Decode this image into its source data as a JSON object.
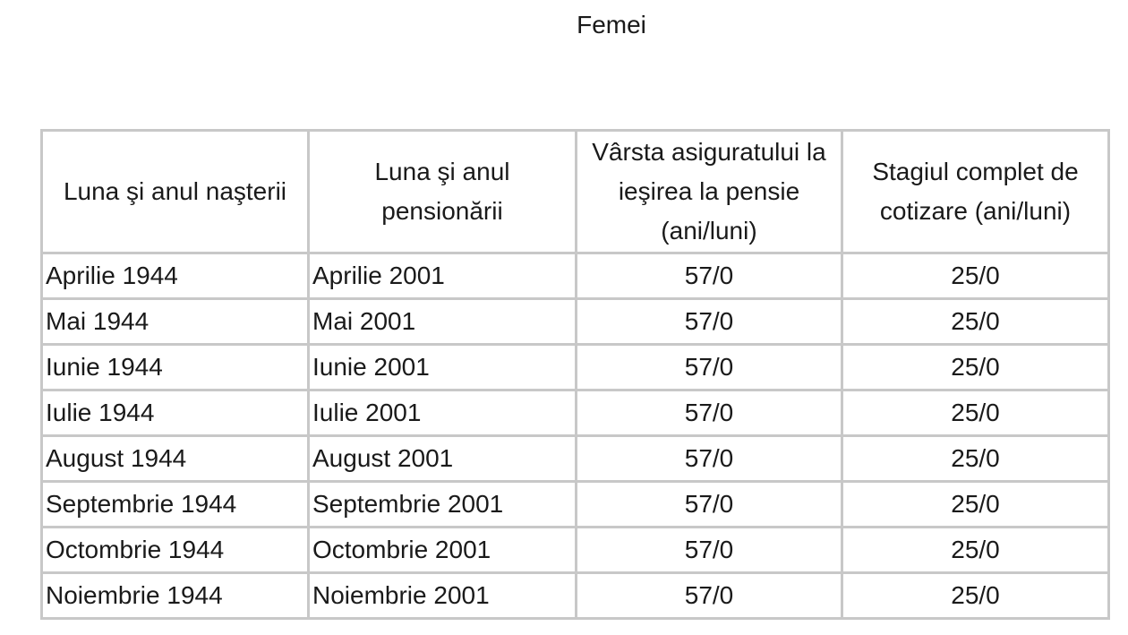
{
  "title": "Femei",
  "table": {
    "headers": [
      "Luna şi anul naşterii",
      "Luna şi anul pensionării",
      "Vârsta asiguratului la ieşirea la pensie (ani/luni)",
      "Stagiul complet de cotizare (ani/luni)"
    ],
    "rows": [
      [
        "Aprilie 1944",
        "Aprilie 2001",
        "57/0",
        "25/0"
      ],
      [
        "Mai 1944",
        "Mai 2001",
        "57/0",
        "25/0"
      ],
      [
        "Iunie 1944",
        "Iunie 2001",
        "57/0",
        "25/0"
      ],
      [
        "Iulie 1944",
        "Iulie 2001",
        "57/0",
        "25/0"
      ],
      [
        "August 1944",
        "August 2001",
        "57/0",
        "25/0"
      ],
      [
        "Septembrie 1944",
        "Septembrie 2001",
        "57/0",
        "25/0"
      ],
      [
        "Octombrie 1944",
        "Octombrie 2001",
        "57/0",
        "25/0"
      ],
      [
        "Noiembrie 1944",
        "Noiembrie 2001",
        "57/0",
        "25/0"
      ]
    ]
  }
}
